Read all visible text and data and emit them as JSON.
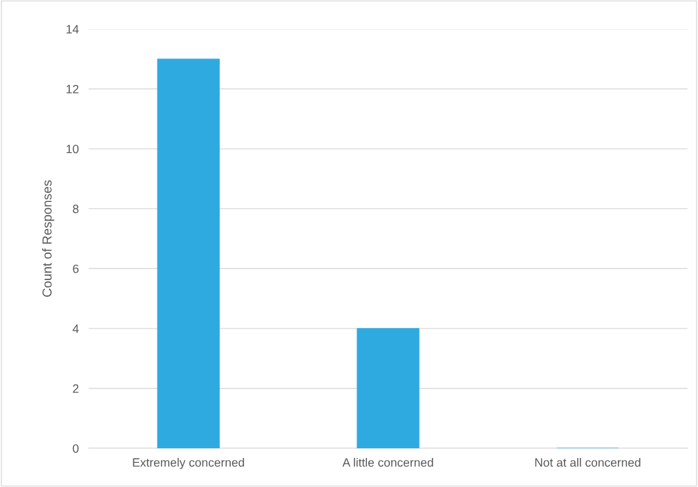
{
  "chart_data": {
    "type": "bar",
    "categories": [
      "Extremely concerned",
      "A little concerned",
      "Not at all concerned"
    ],
    "values": [
      13,
      4,
      0
    ],
    "color": "#2eaae1",
    "ylabel": "Count of Responses",
    "ylim": [
      0,
      14
    ],
    "yticks": [
      0,
      2,
      4,
      6,
      8,
      10,
      12,
      14
    ],
    "grid": "y"
  }
}
